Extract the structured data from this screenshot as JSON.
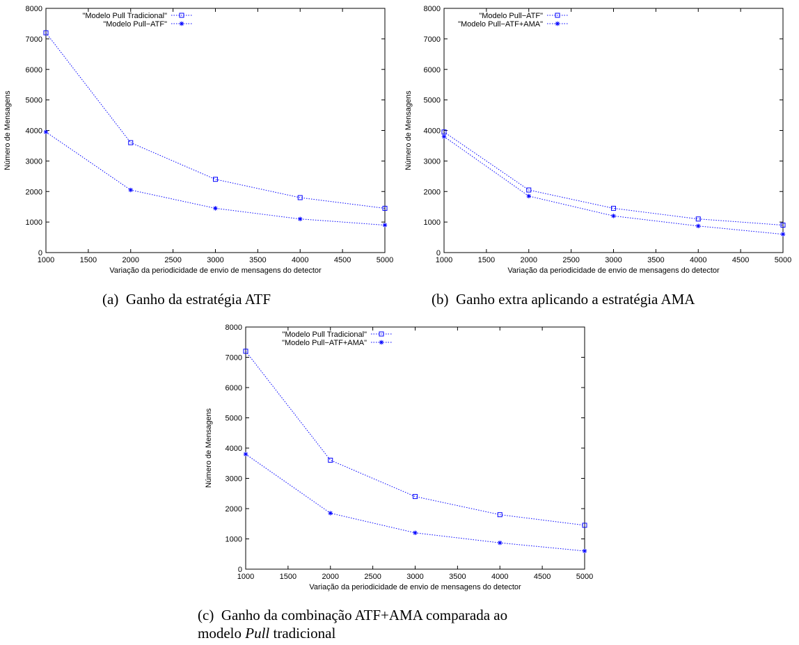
{
  "chart_data": [
    {
      "type": "line",
      "xlabel": "Variação da periodicidade de envio de mensagens do detector",
      "ylabel": "Número de Mensagens",
      "xlim": [
        1000,
        5000
      ],
      "ylim": [
        0,
        8000
      ],
      "xticks": [
        "1000",
        "1500",
        "2000",
        "2500",
        "3000",
        "3500",
        "4000",
        "4500",
        "5000"
      ],
      "yticks": [
        "0",
        "1000",
        "2000",
        "3000",
        "4000",
        "5000",
        "6000",
        "7000",
        "8000"
      ],
      "grid": false,
      "legend": "top-left",
      "x": [
        1000,
        2000,
        3000,
        4000,
        5000
      ],
      "series": [
        {
          "name": "\"Modelo Pull Tradicional\"",
          "marker": "square",
          "values": [
            7200,
            3600,
            2400,
            1800,
            1450
          ]
        },
        {
          "name": "\"Modelo Pull−ATF\"",
          "marker": "star",
          "values": [
            3950,
            2050,
            1450,
            1100,
            900
          ]
        }
      ],
      "color": "#0000ff"
    },
    {
      "type": "line",
      "xlabel": "Variação da periodicidade de envio de mensagens do detector",
      "ylabel": "Número de Mensagens",
      "xlim": [
        1000,
        5000
      ],
      "ylim": [
        0,
        8000
      ],
      "xticks": [
        "1000",
        "1500",
        "2000",
        "2500",
        "3000",
        "3500",
        "4000",
        "4500",
        "5000"
      ],
      "yticks": [
        "0",
        "1000",
        "2000",
        "3000",
        "4000",
        "5000",
        "6000",
        "7000",
        "8000"
      ],
      "grid": false,
      "legend": "top-left",
      "x": [
        1000,
        2000,
        3000,
        4000,
        5000
      ],
      "series": [
        {
          "name": "\"Modelo Pull−ATF\"",
          "marker": "square",
          "values": [
            3950,
            2050,
            1450,
            1100,
            900
          ]
        },
        {
          "name": "\"Modelo Pull−ATF+AMA\"",
          "marker": "star",
          "values": [
            3800,
            1850,
            1200,
            870,
            600
          ]
        }
      ],
      "color": "#0000ff"
    },
    {
      "type": "line",
      "xlabel": "Variação da periodicidade de envio de mensagens do detector",
      "ylabel": "Número de Mensagens",
      "xlim": [
        1000,
        5000
      ],
      "ylim": [
        0,
        8000
      ],
      "xticks": [
        "1000",
        "1500",
        "2000",
        "2500",
        "3000",
        "3500",
        "4000",
        "4500",
        "5000"
      ],
      "yticks": [
        "0",
        "1000",
        "2000",
        "3000",
        "4000",
        "5000",
        "6000",
        "7000",
        "8000"
      ],
      "grid": false,
      "legend": "top-left",
      "x": [
        1000,
        2000,
        3000,
        4000,
        5000
      ],
      "series": [
        {
          "name": "\"Modelo Pull Tradicional\"",
          "marker": "square",
          "values": [
            7200,
            3600,
            2400,
            1800,
            1450
          ]
        },
        {
          "name": "\"Modelo Pull−ATF+AMA\"",
          "marker": "star",
          "values": [
            3800,
            1850,
            1200,
            870,
            600
          ]
        }
      ],
      "color": "#0000ff"
    }
  ],
  "captions": {
    "a_prefix": "(a)",
    "a_text": "Ganho da estratégia ATF",
    "b_prefix": "(b)",
    "b_text": "Ganho extra aplicando a estratégia AMA",
    "c_prefix": "(c)",
    "c_line1": "Ganho da combinação ATF+AMA comparada ao",
    "c_line2_a": "modelo ",
    "c_line2_em": "Pull",
    "c_line2_b": " tradicional"
  }
}
